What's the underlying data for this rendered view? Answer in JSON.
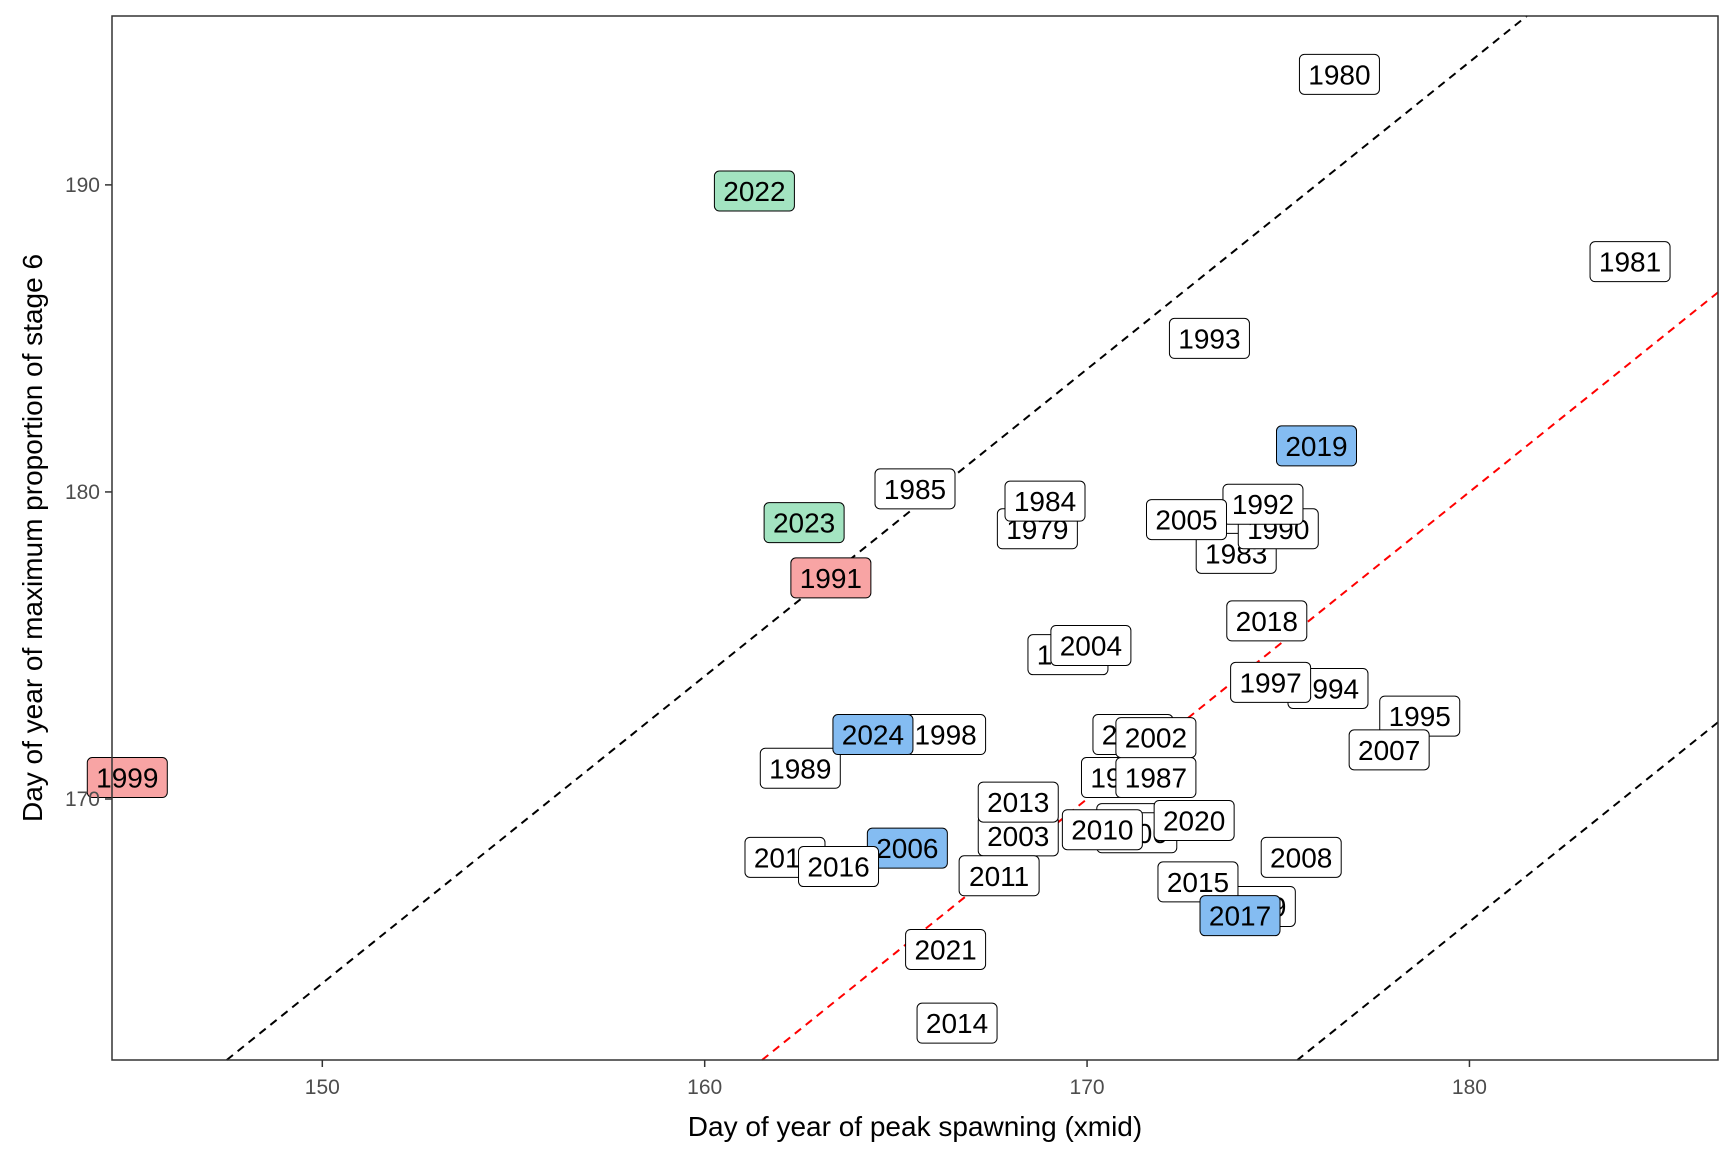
{
  "chart_data": {
    "type": "scatter",
    "title": "",
    "xlabel": "Day of year of peak spawning (xmid)",
    "ylabel": "Day of year of maximum proportion of stage 6",
    "xlim": [
      144.5,
      186.5
    ],
    "ylim": [
      161.5,
      195.5
    ],
    "x_ticks": [
      150,
      160,
      170,
      180
    ],
    "y_ticks": [
      170,
      180,
      190
    ],
    "grid": false,
    "legend": "none",
    "reference_lines": [
      {
        "slope": 1,
        "intercept": 14,
        "color": "#000000",
        "style": "dashed"
      },
      {
        "slope": 1,
        "intercept": 0,
        "color": "#ff0000",
        "style": "dashed"
      },
      {
        "slope": 1,
        "intercept": -14,
        "color": "#000000",
        "style": "dashed"
      }
    ],
    "category_colors": {
      "none": "#ffffff",
      "red": "#f8a4a4",
      "green": "#a3e4c1",
      "blue": "#84bcf2"
    },
    "points": [
      {
        "label": "1979",
        "x": 168.7,
        "y": 178.8,
        "category": "none"
      },
      {
        "label": "1980",
        "x": 176.6,
        "y": 193.6,
        "category": "none"
      },
      {
        "label": "1981",
        "x": 184.2,
        "y": 187.5,
        "category": "none"
      },
      {
        "label": "1983",
        "x": 173.9,
        "y": 178.0,
        "category": "none"
      },
      {
        "label": "1984",
        "x": 168.9,
        "y": 179.7,
        "category": "none"
      },
      {
        "label": "1985",
        "x": 165.5,
        "y": 180.1,
        "category": "none"
      },
      {
        "label": "1986",
        "x": 170.9,
        "y": 170.7,
        "category": "none"
      },
      {
        "label": "1987",
        "x": 171.8,
        "y": 170.7,
        "category": "none"
      },
      {
        "label": "1988",
        "x": 171.3,
        "y": 169.2,
        "category": "none"
      },
      {
        "label": "1989",
        "x": 162.5,
        "y": 171.0,
        "category": "none"
      },
      {
        "label": "1990",
        "x": 175.0,
        "y": 178.8,
        "category": "none"
      },
      {
        "label": "1991",
        "x": 163.3,
        "y": 177.2,
        "category": "red"
      },
      {
        "label": "1992",
        "x": 174.6,
        "y": 179.6,
        "category": "none"
      },
      {
        "label": "1993",
        "x": 173.2,
        "y": 185.0,
        "category": "none"
      },
      {
        "label": "1994",
        "x": 176.3,
        "y": 173.6,
        "category": "none"
      },
      {
        "label": "1995",
        "x": 178.7,
        "y": 172.7,
        "category": "none"
      },
      {
        "label": "1996",
        "x": 169.5,
        "y": 174.7,
        "category": "none"
      },
      {
        "label": "1997",
        "x": 174.8,
        "y": 173.8,
        "category": "none"
      },
      {
        "label": "1998",
        "x": 166.3,
        "y": 172.1,
        "category": "none"
      },
      {
        "label": "1999",
        "x": 144.9,
        "y": 170.7,
        "category": "red"
      },
      {
        "label": "2000",
        "x": 171.3,
        "y": 168.9,
        "category": "none"
      },
      {
        "label": "2001",
        "x": 171.2,
        "y": 172.1,
        "category": "none"
      },
      {
        "label": "2002",
        "x": 171.8,
        "y": 172.0,
        "category": "none"
      },
      {
        "label": "2003",
        "x": 168.2,
        "y": 168.8,
        "category": "none"
      },
      {
        "label": "2004",
        "x": 170.1,
        "y": 175.0,
        "category": "none"
      },
      {
        "label": "2005",
        "x": 172.6,
        "y": 179.1,
        "category": "none"
      },
      {
        "label": "2006",
        "x": 165.3,
        "y": 168.4,
        "category": "blue"
      },
      {
        "label": "2007",
        "x": 177.9,
        "y": 171.6,
        "category": "none"
      },
      {
        "label": "2008",
        "x": 175.6,
        "y": 168.1,
        "category": "none"
      },
      {
        "label": "2009",
        "x": 174.4,
        "y": 166.5,
        "category": "none"
      },
      {
        "label": "2010",
        "x": 170.4,
        "y": 169.0,
        "category": "none"
      },
      {
        "label": "2011",
        "x": 167.7,
        "y": 167.5,
        "category": "none"
      },
      {
        "label": "2012",
        "x": 162.1,
        "y": 168.1,
        "category": "none"
      },
      {
        "label": "2013",
        "x": 168.2,
        "y": 169.9,
        "category": "none"
      },
      {
        "label": "2014",
        "x": 166.6,
        "y": 162.7,
        "category": "none"
      },
      {
        "label": "2015",
        "x": 172.9,
        "y": 167.3,
        "category": "none"
      },
      {
        "label": "2016",
        "x": 163.5,
        "y": 167.8,
        "category": "none"
      },
      {
        "label": "2017",
        "x": 174.0,
        "y": 166.2,
        "category": "blue"
      },
      {
        "label": "2018",
        "x": 174.7,
        "y": 175.8,
        "category": "none"
      },
      {
        "label": "2019",
        "x": 176.0,
        "y": 181.5,
        "category": "blue"
      },
      {
        "label": "2020",
        "x": 172.8,
        "y": 169.3,
        "category": "none"
      },
      {
        "label": "2021",
        "x": 166.3,
        "y": 165.1,
        "category": "none"
      },
      {
        "label": "2022",
        "x": 161.3,
        "y": 189.8,
        "category": "green"
      },
      {
        "label": "2023",
        "x": 162.6,
        "y": 179.0,
        "category": "green"
      },
      {
        "label": "2024",
        "x": 164.4,
        "y": 172.1,
        "category": "blue"
      }
    ]
  }
}
